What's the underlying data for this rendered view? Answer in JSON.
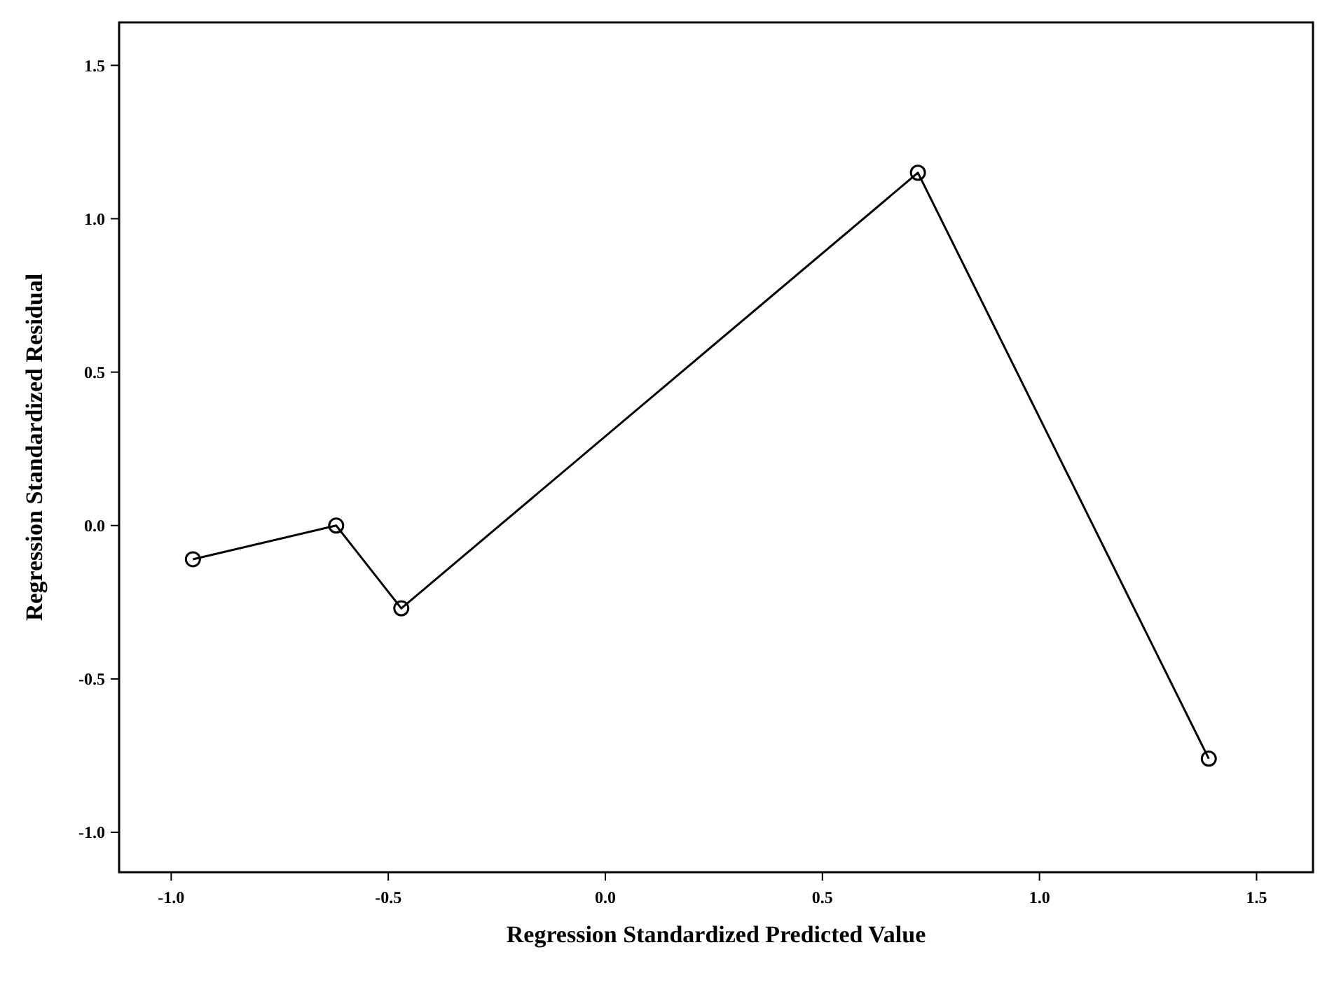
{
  "chart_data": {
    "type": "line",
    "xlabel": "Regression Standardized Predicted Value",
    "ylabel": "Regression Standardized Residual",
    "x": [
      -0.95,
      -0.62,
      -0.47,
      0.72,
      1.39
    ],
    "series": [
      {
        "color": "#000000",
        "values": [
          -0.11,
          0.0,
          -0.27,
          1.15,
          -0.76
        ]
      }
    ],
    "xlim": [
      -1.12,
      1.63
    ],
    "ylim": [
      -1.13,
      1.64
    ],
    "xticks": [
      {
        "value": -1,
        "label": "-1.0"
      },
      {
        "value": -0.5,
        "label": "-0.5"
      },
      {
        "value": 0,
        "label": "0.0"
      },
      {
        "value": 0.5,
        "label": "0.5"
      },
      {
        "value": 1,
        "label": "1.0"
      },
      {
        "value": 1.5,
        "label": "1.5"
      }
    ],
    "yticks": [
      {
        "value": -1,
        "label": "-1.0"
      },
      {
        "value": -0.5,
        "label": "-0.5"
      },
      {
        "value": 0,
        "label": "0.0"
      },
      {
        "value": 0.5,
        "label": "0.5"
      },
      {
        "value": 1,
        "label": "1.0"
      },
      {
        "value": 1.5,
        "label": "1.5"
      }
    ],
    "marker": "circle",
    "line_style": "solid"
  }
}
